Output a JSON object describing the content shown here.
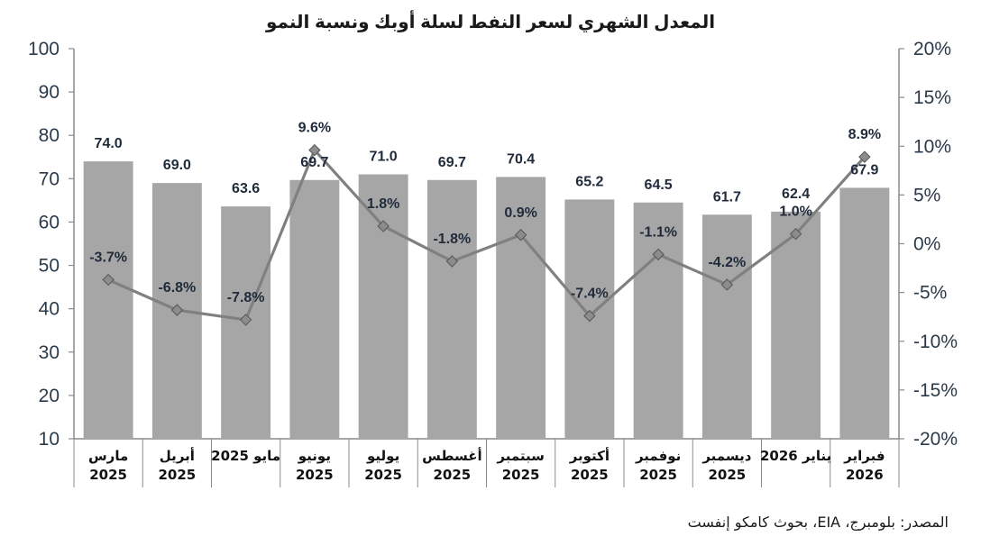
{
  "chart_data": {
    "type": "bar+line",
    "title": "المعدل الشهري لسعر النفط لسلة أوبك ونسبة النمو",
    "categories": [
      [
        "مارس",
        "2025"
      ],
      [
        "أبريل",
        "2025"
      ],
      [
        "مايو 2025"
      ],
      [
        "يونيو",
        "2025"
      ],
      [
        "يوليو",
        "2025"
      ],
      [
        "أغسطس",
        "2025"
      ],
      [
        "سبتمبر",
        "2025"
      ],
      [
        "أكتوبر",
        "2025"
      ],
      [
        "نوفمبر",
        "2025"
      ],
      [
        "ديسمبر",
        "2025"
      ],
      [
        "يناير 2026"
      ],
      [
        "فبراير",
        "2026"
      ]
    ],
    "series": [
      {
        "type": "bar",
        "axis": "left",
        "color": "#a6a6a6",
        "values": [
          74.0,
          69.0,
          63.6,
          69.7,
          71.0,
          69.7,
          70.4,
          65.2,
          64.5,
          61.7,
          62.4,
          67.9
        ],
        "labels": [
          "74.0",
          "69.0",
          "63.6",
          "69.7",
          "71.0",
          "69.7",
          "70.4",
          "65.2",
          "64.5",
          "61.7",
          "62.4",
          "67.9"
        ]
      },
      {
        "type": "line",
        "axis": "right",
        "color": "#808080",
        "marker_color": "#8c8c8c",
        "values": [
          -3.7,
          -6.8,
          -7.8,
          9.6,
          1.8,
          -1.8,
          0.9,
          -7.4,
          -1.1,
          -4.2,
          1.0,
          8.9
        ],
        "labels": [
          "-3.7%",
          "-6.8%",
          "-7.8%",
          "9.6%",
          "1.8%",
          "-1.8%",
          "0.9%",
          "-7.4%",
          "-1.1%",
          "-4.2%",
          "1.0%",
          "8.9%"
        ]
      }
    ],
    "left_axis": {
      "range": [
        10,
        100
      ],
      "ticks": [
        "10",
        "20",
        "30",
        "40",
        "50",
        "60",
        "70",
        "80",
        "90",
        "100"
      ]
    },
    "right_axis": {
      "range": [
        -20,
        20
      ],
      "ticks": [
        "-20%",
        "-15%",
        "-10%",
        "-5%",
        "0%",
        "5%",
        "10%",
        "15%",
        "20%"
      ]
    },
    "grid": false,
    "legend": "none"
  },
  "source": "المصدر: بلومبرج، EIA، بحوث كامكو إنفست"
}
